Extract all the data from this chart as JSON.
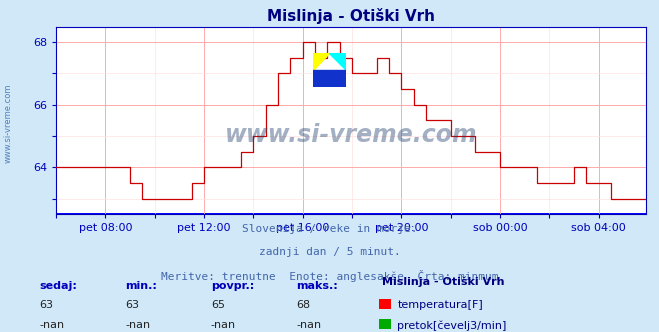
{
  "title": "Mislinja - Otiški Vrh",
  "title_color": "#000080",
  "bg_color": "#d0e8f8",
  "plot_bg_color": "#ffffff",
  "grid_color_major": "#ffaaaa",
  "grid_color_minor": "#ffe0e0",
  "line_color": "#cc0000",
  "axis_color": "#0000bb",
  "x_tick_labels": [
    "pet 08:00",
    "pet 12:00",
    "pet 16:00",
    "pet 20:00",
    "sob 00:00",
    "sob 04:00"
  ],
  "y_ticks": [
    64,
    66,
    68
  ],
  "ylim": [
    62.5,
    68.5
  ],
  "footer_line1": "Slovenija / reke in morje.",
  "footer_line2": "zadnji dan / 5 minut.",
  "footer_line3": "Meritve: trenutne  Enote: anglesakše  Črta: minmum",
  "footer_color": "#4466aa",
  "stats_headers": [
    "sedaj:",
    "min.:",
    "povpr.:",
    "maks.:"
  ],
  "stats_temp": [
    "63",
    "63",
    "65",
    "68"
  ],
  "stats_flow": [
    "-nan",
    "-nan",
    "-nan",
    "-nan"
  ],
  "legend_title": "Mislinja - Otiški Vrh",
  "legend_color": "#000080",
  "label_temp": "temperatura[F]",
  "label_flow": "pretok[čevelj3/min]",
  "watermark": "www.si-vreme.com",
  "watermark_color": "#1a3a6a",
  "watermark_alpha": 0.4,
  "sidebar_text": "www.si-vreme.com",
  "sidebar_color": "#3366aa"
}
